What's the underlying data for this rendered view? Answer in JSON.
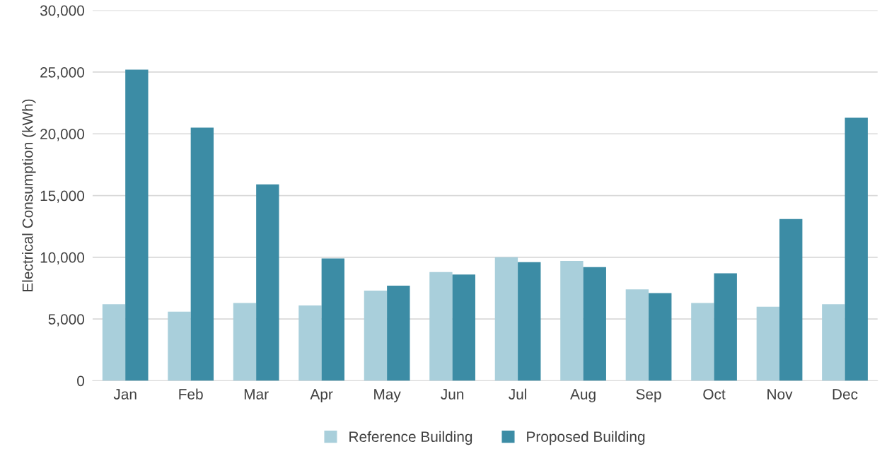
{
  "chart_data": {
    "type": "bar",
    "ylabel": "Electrical Consumption (kWh)",
    "categories": [
      "Jan",
      "Feb",
      "Mar",
      "Apr",
      "May",
      "Jun",
      "Jul",
      "Aug",
      "Sep",
      "Oct",
      "Nov",
      "Dec"
    ],
    "series": [
      {
        "name": "Reference Building",
        "color": "#a9cfdb",
        "values": [
          6200,
          5600,
          6300,
          6100,
          7300,
          8800,
          10000,
          9700,
          7400,
          6300,
          6000,
          6200
        ]
      },
      {
        "name": "Proposed Building",
        "color": "#3c8ca5",
        "values": [
          25200,
          20500,
          15900,
          9900,
          7700,
          8600,
          9600,
          9200,
          7100,
          8700,
          13100,
          21300
        ]
      }
    ],
    "ylim": [
      0,
      30000
    ],
    "yticks": [
      0,
      {
        "value": 5000,
        "label": "5,000"
      },
      {
        "value": 10000,
        "label": "10,000"
      },
      {
        "value": 15000,
        "label": "15,000"
      },
      {
        "value": 20000,
        "label": "20,000"
      },
      {
        "value": 25000,
        "label": "25,000"
      },
      {
        "value": 30000,
        "label": "30,000"
      }
    ],
    "grid": "y",
    "legend": "bottom"
  }
}
